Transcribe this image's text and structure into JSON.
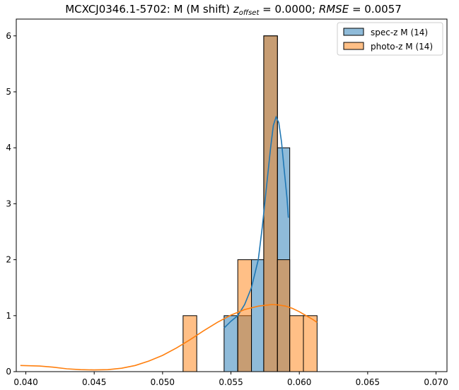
{
  "chart_data": {
    "type": "histogram",
    "title": {
      "prefix": "MCXCJ0346.1-5702: M (M shift) ",
      "z_symbol": "z",
      "z_subscript": "offset",
      "z_value": " = 0.0000; ",
      "rmse_symbol": "RMSE",
      "rmse_value": " = 0.0057"
    },
    "xlim": [
      0.0393,
      0.0708
    ],
    "ylim": [
      0,
      6.3
    ],
    "x_ticks": [
      0.04,
      0.045,
      0.05,
      0.055,
      0.06,
      0.065,
      0.07
    ],
    "x_tick_labels": [
      "0.040",
      "0.045",
      "0.050",
      "0.055",
      "0.060",
      "0.065",
      "0.070"
    ],
    "y_ticks": [
      0,
      1,
      2,
      3,
      4,
      5,
      6
    ],
    "y_tick_labels": [
      "0",
      "1",
      "2",
      "3",
      "4",
      "5",
      "6"
    ],
    "legend_position": "top-right",
    "colors": {
      "spec_fill": "#1f77b4",
      "photo_fill": "#ff7f0e",
      "overlap_fill": "#c49a6c",
      "spec_line": "#1f77b4",
      "photo_line": "#ff7f0e",
      "edge": "#000000"
    },
    "series": [
      {
        "name": "spec-z M (14)",
        "kind": "hist",
        "bins": [
          {
            "x0": 0.0545,
            "x1": 0.0555,
            "count": 1
          },
          {
            "x0": 0.0555,
            "x1": 0.0565,
            "count": 1
          },
          {
            "x0": 0.0565,
            "x1": 0.0574,
            "count": 2
          },
          {
            "x0": 0.0574,
            "x1": 0.0584,
            "count": 6
          },
          {
            "x0": 0.0584,
            "x1": 0.0593,
            "count": 4
          }
        ]
      },
      {
        "name": "photo-z M (14)",
        "kind": "hist",
        "bins": [
          {
            "x0": 0.0515,
            "x1": 0.0525,
            "count": 1
          },
          {
            "x0": 0.0555,
            "x1": 0.0565,
            "count": 2
          },
          {
            "x0": 0.0574,
            "x1": 0.0584,
            "count": 6
          },
          {
            "x0": 0.0584,
            "x1": 0.0593,
            "count": 2
          },
          {
            "x0": 0.0593,
            "x1": 0.0603,
            "count": 1
          },
          {
            "x0": 0.0603,
            "x1": 0.0613,
            "count": 1
          }
        ]
      }
    ],
    "kde": [
      {
        "series": "spec-z M (14)",
        "points": [
          [
            0.0545,
            0.78
          ],
          [
            0.055,
            0.9
          ],
          [
            0.0555,
            1.0
          ],
          [
            0.056,
            1.2
          ],
          [
            0.0565,
            1.5
          ],
          [
            0.057,
            2.0
          ],
          [
            0.0573,
            2.6
          ],
          [
            0.0576,
            3.3
          ],
          [
            0.0579,
            4.0
          ],
          [
            0.0581,
            4.4
          ],
          [
            0.0583,
            4.55
          ],
          [
            0.0585,
            4.45
          ],
          [
            0.0587,
            4.1
          ],
          [
            0.0589,
            3.6
          ],
          [
            0.0591,
            3.1
          ],
          [
            0.0592,
            2.75
          ]
        ]
      },
      {
        "series": "photo-z M (14)",
        "points": [
          [
            0.0396,
            0.11
          ],
          [
            0.041,
            0.1
          ],
          [
            0.042,
            0.08
          ],
          [
            0.043,
            0.05
          ],
          [
            0.044,
            0.035
          ],
          [
            0.045,
            0.03
          ],
          [
            0.046,
            0.035
          ],
          [
            0.047,
            0.06
          ],
          [
            0.048,
            0.11
          ],
          [
            0.049,
            0.19
          ],
          [
            0.05,
            0.29
          ],
          [
            0.051,
            0.42
          ],
          [
            0.052,
            0.57
          ],
          [
            0.053,
            0.73
          ],
          [
            0.054,
            0.88
          ],
          [
            0.055,
            1.01
          ],
          [
            0.056,
            1.11
          ],
          [
            0.057,
            1.17
          ],
          [
            0.058,
            1.2
          ],
          [
            0.0585,
            1.19
          ],
          [
            0.059,
            1.17
          ],
          [
            0.0595,
            1.13
          ],
          [
            0.06,
            1.07
          ],
          [
            0.0605,
            1.0
          ],
          [
            0.061,
            0.93
          ],
          [
            0.0613,
            0.88
          ]
        ]
      }
    ]
  }
}
